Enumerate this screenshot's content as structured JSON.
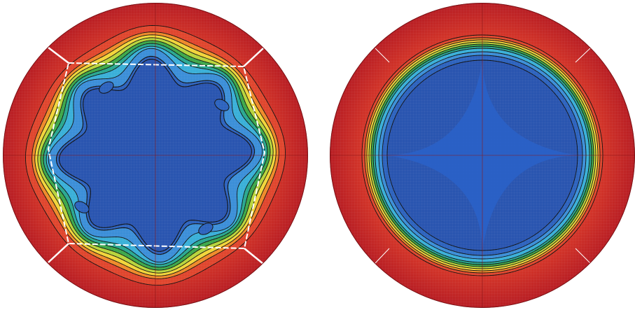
{
  "figure": {
    "panels": [
      {
        "id": "left",
        "description_hidden": true,
        "contour_levels": 10,
        "boundary_style": "dashed polygon with wavy inner core",
        "lobes": 8
      },
      {
        "id": "right",
        "description_hidden": true,
        "contour_levels": 10,
        "boundary_style": "concentric circles",
        "lobes": 0
      }
    ],
    "colors": {
      "outer": "#c8242a",
      "red_light": "#e0462e",
      "orange": "#f08a2a",
      "yellow": "#f2d43a",
      "yellow_green": "#b8d43c",
      "green": "#3ea84a",
      "teal": "#2aa890",
      "cyan": "#3ab0d8",
      "light_blue": "#3c8fd8",
      "blue": "#2d63be",
      "core_blue": "#2a55b0",
      "line": "#111111",
      "white_line": "#ffffff"
    }
  }
}
